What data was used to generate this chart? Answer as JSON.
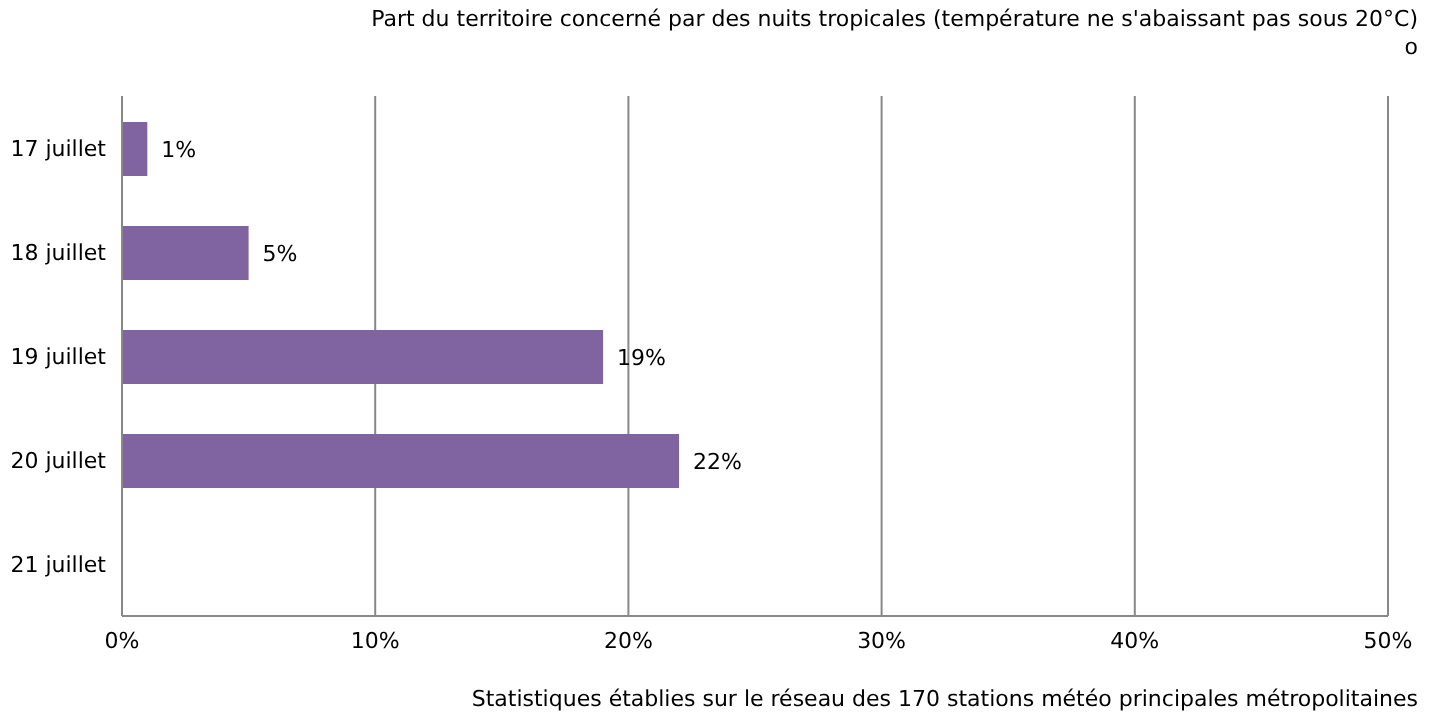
{
  "chart_data": {
    "type": "bar",
    "orientation": "horizontal",
    "title": "Part du territoire concerné par des nuits tropicales (température ne s'abaissant pas sous 20°C)",
    "subtitle": "o",
    "categories": [
      "17 juillet",
      "18 juillet",
      "19 juillet",
      "20 juillet",
      "21 juillet"
    ],
    "values": [
      1,
      5,
      19,
      22,
      0
    ],
    "color": "#8064a2",
    "value_labels": [
      "1%",
      "5%",
      "19%",
      "22%",
      null
    ],
    "xlim": [
      0,
      50
    ],
    "xticks": [
      {
        "value": 0,
        "label": "0%"
      },
      {
        "value": 10,
        "label": "10%"
      },
      {
        "value": 20,
        "label": "20%"
      },
      {
        "value": 30,
        "label": "30%"
      },
      {
        "value": 40,
        "label": "40%"
      },
      {
        "value": 50,
        "label": "50%"
      }
    ],
    "grid": "x",
    "legend": false,
    "annotations": [
      "Statistiques établies sur le réseau des 170 stations météo principales métropolitaines"
    ]
  }
}
